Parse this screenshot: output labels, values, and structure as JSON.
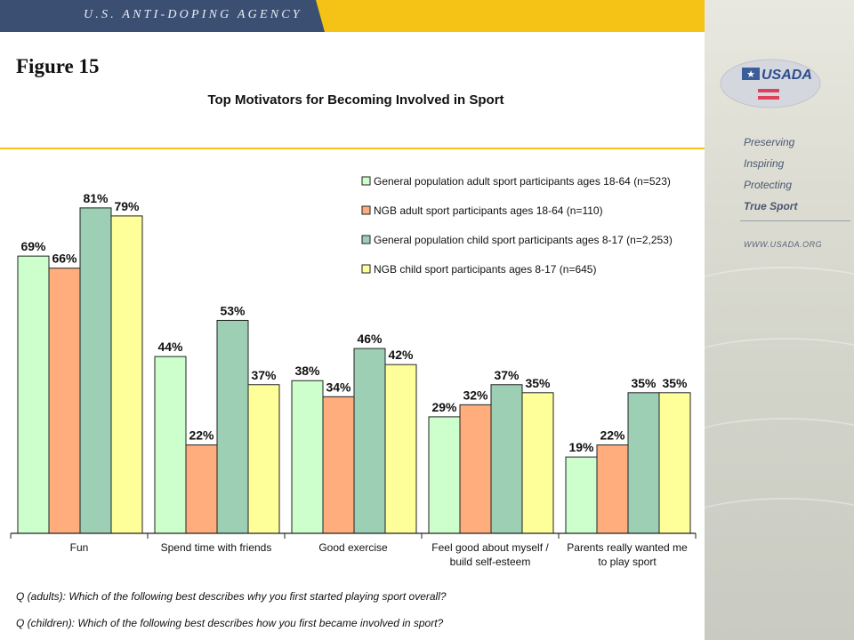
{
  "header": {
    "brand": "U.S. ANTI-DOPING AGENCY"
  },
  "sidebar": {
    "logo_text": "USADA",
    "taglines": [
      "Preserving",
      "Inspiring",
      "Protecting",
      "True Sport"
    ],
    "url": "WWW.USADA.ORG"
  },
  "figure_label": "Figure 15",
  "chart_data": {
    "type": "bar",
    "title": "Top Motivators for Becoming Involved in Sport",
    "categories": [
      [
        "Fun"
      ],
      [
        "Spend time with friends"
      ],
      [
        "Good exercise"
      ],
      [
        "Feel good about myself /",
        "build self-esteem"
      ],
      [
        "Parents really wanted me",
        "to play sport"
      ]
    ],
    "series": [
      {
        "name": "General population adult sport participants ages 18-64 (n=523)",
        "color": "#ccffcc",
        "values": [
          69,
          44,
          38,
          29,
          19
        ]
      },
      {
        "name": "NGB adult sport participants ages 18-64 (n=110)",
        "color": "#ffad7d",
        "values": [
          66,
          22,
          34,
          32,
          22
        ]
      },
      {
        "name": "General population child sport participants ages 8-17 (n=2,253)",
        "color": "#9dcfb5",
        "values": [
          81,
          53,
          46,
          37,
          35
        ]
      },
      {
        "name": "NGB child sport participants ages 8-17 (n=645)",
        "color": "#ffff99",
        "values": [
          79,
          37,
          42,
          35,
          35
        ]
      }
    ],
    "value_suffix": "%",
    "ylim": [
      0,
      100
    ],
    "grid": false,
    "legend": "top-right"
  },
  "questions": {
    "adults": "Q (adults): Which of the following best describes why you first started playing sport overall?",
    "children": "Q (children): Which of the following best describes how you first became involved in sport?"
  }
}
